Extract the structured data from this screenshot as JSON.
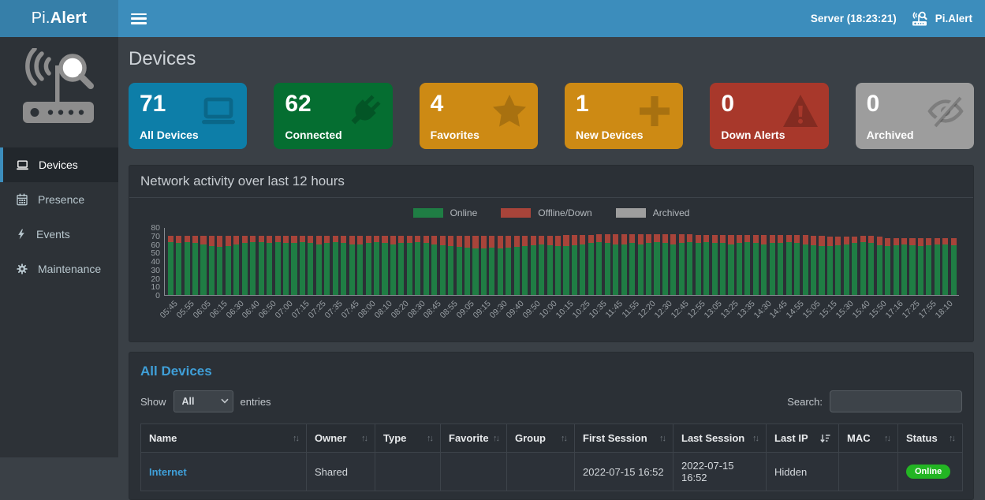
{
  "header": {
    "brand_prefix": "Pi.",
    "brand_bold": "Alert",
    "server_label": "Server (18:23:21)",
    "right_brand": "Pi.Alert"
  },
  "sidebar": {
    "items": [
      {
        "label": "Devices",
        "icon": "laptop-icon",
        "active": true
      },
      {
        "label": "Presence",
        "icon": "calendar-icon",
        "active": false
      },
      {
        "label": "Events",
        "icon": "bolt-icon",
        "active": false
      },
      {
        "label": "Maintenance",
        "icon": "gear-icon",
        "active": false
      }
    ]
  },
  "page": {
    "title": "Devices"
  },
  "cards": [
    {
      "value": "71",
      "label": "All Devices",
      "color": "#0d7ea8",
      "icon": "laptop-icon"
    },
    {
      "value": "62",
      "label": "Connected",
      "color": "#056e31",
      "icon": "plug-icon"
    },
    {
      "value": "4",
      "label": "Favorites",
      "color": "#cd8a14",
      "icon": "star-icon"
    },
    {
      "value": "1",
      "label": "New Devices",
      "color": "#cd8a14",
      "icon": "plus-icon"
    },
    {
      "value": "0",
      "label": "Down Alerts",
      "color": "#a8382b",
      "icon": "warning-icon"
    },
    {
      "value": "0",
      "label": "Archived",
      "color": "#9d9d9d",
      "icon": "eye-slash-icon"
    }
  ],
  "chart_panel": {
    "title": "Network activity over last 12 hours"
  },
  "chart_data": {
    "type": "bar",
    "stacked": true,
    "title": "Network activity over last 12 hours",
    "xlabel": "",
    "ylabel": "",
    "ylim": [
      0,
      80
    ],
    "yticks": [
      0,
      10,
      20,
      30,
      40,
      50,
      60,
      70,
      80
    ],
    "legend_position": "top-center",
    "grid": false,
    "x_labels": [
      "05:45",
      "05:55",
      "06:05",
      "06:15",
      "06:30",
      "06:40",
      "06:50",
      "07:00",
      "07:15",
      "07:25",
      "07:35",
      "07:45",
      "08:00",
      "08:10",
      "08:20",
      "08:30",
      "08:45",
      "08:55",
      "09:05",
      "09:15",
      "09:30",
      "09:40",
      "09:50",
      "10:00",
      "10:15",
      "10:25",
      "10:35",
      "11:45",
      "11:55",
      "12:20",
      "12:30",
      "12:45",
      "12:55",
      "13:05",
      "13:25",
      "13:35",
      "14:30",
      "14:45",
      "14:55",
      "15:05",
      "15:15",
      "15:30",
      "15:40",
      "15:50",
      "17:16",
      "17:25",
      "17:55",
      "18:10"
    ],
    "label_every_n_bars": 2,
    "legend": [
      {
        "name": "Online",
        "color": "#1f7d44"
      },
      {
        "name": "Offline/Down",
        "color": "#a8443a"
      },
      {
        "name": "Archived",
        "color": "#9e9e9e"
      }
    ],
    "series": [
      {
        "name": "Online",
        "color": "#1f7d44",
        "values": [
          62,
          61,
          62,
          61,
          60,
          58,
          57,
          58,
          60,
          61,
          62,
          62,
          61,
          62,
          61,
          61,
          62,
          61,
          60,
          61,
          62,
          61,
          60,
          60,
          61,
          62,
          61,
          60,
          61,
          61,
          62,
          61,
          60,
          59,
          58,
          57,
          56,
          55,
          55,
          56,
          55,
          56,
          57,
          58,
          59,
          60,
          59,
          58,
          58,
          59,
          60,
          61,
          62,
          61,
          60,
          60,
          61,
          60,
          61,
          62,
          61,
          60,
          61,
          62,
          61,
          62,
          61,
          61,
          60,
          61,
          62,
          61,
          60,
          61,
          61,
          62,
          61,
          60,
          59,
          58,
          58,
          59,
          60,
          61,
          62,
          61,
          59,
          58,
          59,
          60,
          59,
          58,
          59,
          60,
          60,
          59
        ]
      },
      {
        "name": "Offline/Down",
        "color": "#a8443a",
        "values": [
          8,
          9,
          8,
          9,
          10,
          12,
          13,
          12,
          10,
          9,
          8,
          8,
          9,
          8,
          9,
          9,
          8,
          9,
          10,
          9,
          8,
          9,
          10,
          10,
          9,
          8,
          9,
          10,
          9,
          9,
          8,
          9,
          10,
          11,
          12,
          13,
          14,
          15,
          15,
          14,
          15,
          14,
          13,
          12,
          11,
          10,
          11,
          12,
          13,
          12,
          11,
          10,
          10,
          11,
          12,
          12,
          11,
          12,
          11,
          10,
          11,
          12,
          11,
          10,
          10,
          9,
          10,
          10,
          11,
          10,
          9,
          10,
          11,
          10,
          10,
          9,
          10,
          11,
          11,
          12,
          11,
          10,
          9,
          8,
          8,
          9,
          10,
          9,
          8,
          7,
          8,
          9,
          8,
          7,
          7,
          8
        ]
      },
      {
        "name": "Archived",
        "color": "#9e9e9e",
        "values": [
          0,
          0,
          0,
          0,
          0,
          0,
          0,
          0,
          0,
          0,
          0,
          0,
          0,
          0,
          0,
          0,
          0,
          0,
          0,
          0,
          0,
          0,
          0,
          0,
          0,
          0,
          0,
          0,
          0,
          0,
          0,
          0,
          0,
          0,
          0,
          0,
          0,
          0,
          0,
          0,
          0,
          0,
          0,
          0,
          0,
          0,
          0,
          0,
          0,
          0,
          0,
          0,
          0,
          0,
          0,
          0,
          0,
          0,
          0,
          0,
          0,
          0,
          0,
          0,
          0,
          0,
          0,
          0,
          0,
          0,
          0,
          0,
          0,
          0,
          0,
          0,
          0,
          0,
          0,
          0,
          0,
          0,
          0,
          0,
          0,
          0,
          0,
          0,
          0,
          0,
          0,
          0,
          0,
          0,
          0,
          0
        ]
      }
    ]
  },
  "devices_panel": {
    "title": "All Devices",
    "show_label": "Show",
    "page_size_value": "All",
    "entries_label": "entries",
    "search_label": "Search:",
    "search_value": "",
    "table": {
      "columns": [
        "Name",
        "Owner",
        "Type",
        "Favorite",
        "Group",
        "First Session",
        "Last Session",
        "Last IP",
        "MAC",
        "Status"
      ],
      "sorted_column": "Last IP",
      "rows": [
        {
          "name": "Internet",
          "owner": "Shared",
          "type": "",
          "favorite": "",
          "group": "",
          "first_session": "2022-07-15  16:52",
          "last_session": "2022-07-15  16:52",
          "last_ip": "Hidden",
          "mac": "",
          "status": "Online"
        }
      ]
    }
  },
  "colors": {
    "topbar": "#3c8dbc",
    "brand_bg": "#367fa9",
    "sidebar_bg": "#2d3237",
    "main_bg": "#3a4046",
    "panel_bg": "#2b3036",
    "link": "#3f9fd8",
    "online_badge": "#23b523"
  }
}
